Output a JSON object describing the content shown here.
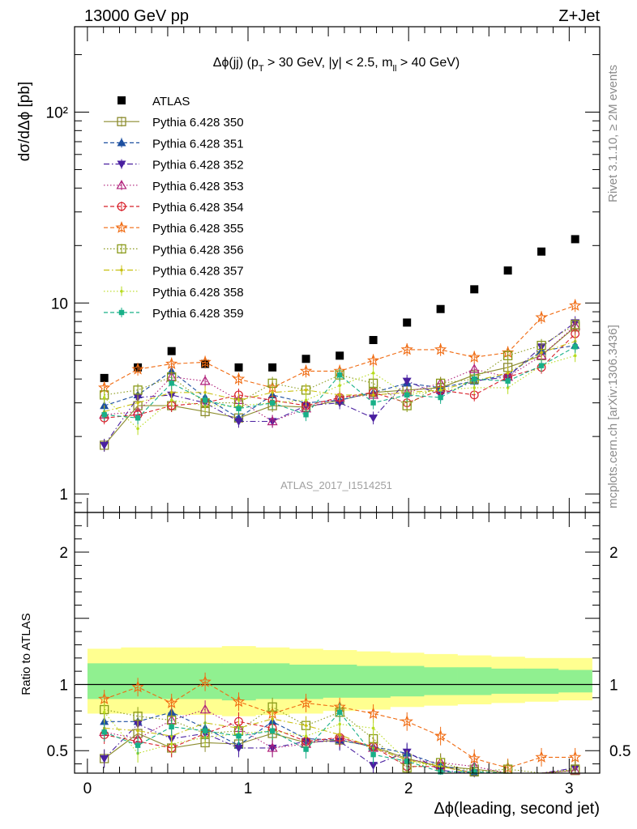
{
  "header": {
    "left": "13000 GeV pp",
    "right": "Z+Jet"
  },
  "plot_title": "Δϕ(jj) (p_T > 30 GeV, |y| < 2.5, m_ll > 40 GeV)",
  "side_right_top": "Rivet 3.1.10, ≥ 2M events",
  "side_right_bottom": "mcplots.cern.ch [arXiv:1306.3436]",
  "watermark": "ATLAS_2017_I1514251",
  "chart_data": [
    {
      "type": "scatter",
      "panel": "main",
      "title": "Δϕ(jj) (p_T > 30 GeV, |y| < 2.5, m_ll > 40 GeV)",
      "ylabel": "dσ/dΔϕ [pb]",
      "xlabel": "",
      "yscale": "log",
      "ylim": [
        0.8,
        280
      ],
      "xlim": [
        -0.08,
        3.19
      ],
      "y_ticks": [
        {
          "value": 1,
          "label": "1"
        },
        {
          "value": 10,
          "label": "10"
        },
        {
          "value": 100,
          "label": "10²"
        }
      ],
      "legend_placement": "top-left",
      "x": [
        0.105,
        0.314,
        0.524,
        0.733,
        0.942,
        1.152,
        1.361,
        1.571,
        1.78,
        1.99,
        2.199,
        2.409,
        2.618,
        2.827,
        3.037
      ],
      "series": [
        {
          "name": "ATLAS",
          "marker": "filled-square",
          "color": "#000000",
          "line": "none",
          "values": [
            4.05,
            4.6,
            5.6,
            4.8,
            4.6,
            4.6,
            5.1,
            5.3,
            6.4,
            7.9,
            9.3,
            11.8,
            14.8,
            18.6,
            21.6
          ]
        },
        {
          "name": "Pythia 6.428 350",
          "marker": "open-square",
          "color": "#8c8c2e",
          "line": "solid",
          "values": [
            1.8,
            2.9,
            2.9,
            2.7,
            2.5,
            2.9,
            2.85,
            3.1,
            3.4,
            3.5,
            3.6,
            4.2,
            4.6,
            5.3,
            7.5
          ]
        },
        {
          "name": "Pythia 6.428 351",
          "marker": "filled-triangle-up",
          "color": "#1c4fa0",
          "line": "dashed",
          "values": [
            2.9,
            3.3,
            4.4,
            3.2,
            2.5,
            3.3,
            3.0,
            3.1,
            3.4,
            3.8,
            3.6,
            3.9,
            4.2,
            5.6,
            6.0
          ]
        },
        {
          "name": "Pythia 6.428 352",
          "marker": "filled-triangle-down",
          "color": "#4a20a0",
          "line": "dashdot",
          "values": [
            1.8,
            3.2,
            3.3,
            3.0,
            2.4,
            2.4,
            2.9,
            3.0,
            2.5,
            3.9,
            3.3,
            3.9,
            4.1,
            5.9,
            7.9
          ]
        },
        {
          "name": "Pythia 6.428 353",
          "marker": "open-triangle-up",
          "color": "#b0207a",
          "line": "dotted",
          "values": [
            2.6,
            2.7,
            4.1,
            3.9,
            3.1,
            2.4,
            2.8,
            3.2,
            3.3,
            3.4,
            3.8,
            4.5,
            4.1,
            5.3,
            7.6
          ]
        },
        {
          "name": "Pythia 6.428 354",
          "marker": "open-circle",
          "color": "#d8202a",
          "line": "dashed",
          "values": [
            2.5,
            2.6,
            2.9,
            3.0,
            3.3,
            3.1,
            2.9,
            3.2,
            3.4,
            3.0,
            3.5,
            3.3,
            4.1,
            4.6,
            6.9
          ]
        },
        {
          "name": "Pythia 6.428 355",
          "marker": "open-star",
          "color": "#f06a10",
          "line": "dashed",
          "values": [
            3.6,
            4.5,
            4.8,
            4.9,
            4.0,
            3.6,
            4.4,
            4.4,
            5.0,
            5.7,
            5.7,
            5.2,
            5.5,
            8.4,
            9.7
          ]
        },
        {
          "name": "Pythia 6.428 356",
          "marker": "open-square",
          "color": "#8a9a1a",
          "line": "dotted",
          "values": [
            3.3,
            3.5,
            4.1,
            3.0,
            3.0,
            3.8,
            3.5,
            4.2,
            3.8,
            2.9,
            3.8,
            4.0,
            5.3,
            6.0,
            7.7
          ]
        },
        {
          "name": "Pythia 6.428 357",
          "marker": "small-dot",
          "color": "#c8c010",
          "line": "dashdot",
          "values": [
            2.7,
            3.0,
            3.4,
            3.4,
            3.1,
            3.4,
            3.5,
            3.3,
            3.3,
            3.4,
            3.5,
            3.9,
            4.3,
            5.5,
            6.3
          ]
        },
        {
          "name": "Pythia 6.428 358",
          "marker": "small-dot",
          "color": "#b8dc20",
          "line": "dotted",
          "values": [
            3.2,
            2.2,
            3.1,
            2.9,
            2.9,
            3.0,
            3.1,
            3.7,
            4.3,
            3.3,
            3.5,
            3.6,
            3.6,
            4.7,
            5.3
          ]
        },
        {
          "name": "Pythia 6.428 359",
          "marker": "filled-square-small",
          "color": "#18b088",
          "line": "dashed",
          "values": [
            2.6,
            2.5,
            3.8,
            3.1,
            2.8,
            3.0,
            2.6,
            4.2,
            3.0,
            3.3,
            3.2,
            4.0,
            3.9,
            4.7,
            5.9
          ]
        }
      ]
    },
    {
      "type": "scatter",
      "panel": "ratio",
      "ylabel": "Ratio to ATLAS",
      "xlabel": "Δϕ(leading, second jet)",
      "ylim": [
        0.33,
        2.3
      ],
      "xlim": [
        -0.08,
        3.19
      ],
      "y_ticks": [
        {
          "value": 0.5,
          "label": "0.5"
        },
        {
          "value": 1,
          "label": "1"
        },
        {
          "value": 2,
          "label": "2"
        }
      ],
      "x_ticks": [
        {
          "value": 0,
          "label": "0"
        },
        {
          "value": 1,
          "label": "1"
        },
        {
          "value": 2,
          "label": "2"
        },
        {
          "value": 3,
          "label": "3"
        }
      ],
      "reference_line": 1,
      "bands": [
        {
          "color": "#ffff90",
          "lower": [
            0.78,
            0.78,
            0.77,
            0.77,
            0.76,
            0.77,
            0.78,
            0.8,
            0.81,
            0.83,
            0.84,
            0.85,
            0.86,
            0.87,
            0.88
          ],
          "upper": [
            1.27,
            1.28,
            1.28,
            1.28,
            1.29,
            1.28,
            1.27,
            1.26,
            1.25,
            1.24,
            1.23,
            1.22,
            1.21,
            1.2,
            1.2
          ]
        },
        {
          "color": "#90f090",
          "lower": [
            0.89,
            0.89,
            0.89,
            0.89,
            0.88,
            0.89,
            0.89,
            0.9,
            0.9,
            0.91,
            0.92,
            0.92,
            0.93,
            0.93,
            0.94
          ],
          "upper": [
            1.16,
            1.16,
            1.16,
            1.16,
            1.16,
            1.16,
            1.15,
            1.15,
            1.14,
            1.14,
            1.13,
            1.13,
            1.12,
            1.12,
            1.11
          ]
        }
      ],
      "x": [
        0.105,
        0.314,
        0.524,
        0.733,
        0.942,
        1.152,
        1.361,
        1.571,
        1.78,
        1.99,
        2.199,
        2.409,
        2.618,
        2.827,
        3.037
      ],
      "series": [
        {
          "ref": "Pythia 6.428 350",
          "values": [
            0.44,
            0.63,
            0.52,
            0.56,
            0.55,
            0.63,
            0.56,
            0.58,
            0.53,
            0.44,
            0.38,
            0.36,
            0.31,
            0.28,
            0.35
          ]
        },
        {
          "ref": "Pythia 6.428 351",
          "values": [
            0.72,
            0.72,
            0.79,
            0.67,
            0.54,
            0.72,
            0.59,
            0.58,
            0.53,
            0.48,
            0.39,
            0.33,
            0.28,
            0.3,
            0.28
          ]
        },
        {
          "ref": "Pythia 6.428 352",
          "values": [
            0.44,
            0.7,
            0.59,
            0.63,
            0.52,
            0.52,
            0.57,
            0.57,
            0.39,
            0.49,
            0.35,
            0.33,
            0.28,
            0.32,
            0.37
          ]
        },
        {
          "ref": "Pythia 6.428 353",
          "values": [
            0.64,
            0.59,
            0.73,
            0.81,
            0.67,
            0.52,
            0.55,
            0.6,
            0.52,
            0.43,
            0.41,
            0.38,
            0.28,
            0.28,
            0.35
          ]
        },
        {
          "ref": "Pythia 6.428 354",
          "values": [
            0.62,
            0.57,
            0.52,
            0.63,
            0.72,
            0.67,
            0.57,
            0.6,
            0.53,
            0.38,
            0.38,
            0.28,
            0.28,
            0.25,
            0.32
          ]
        },
        {
          "ref": "Pythia 6.428 355",
          "values": [
            0.89,
            0.98,
            0.86,
            1.02,
            0.87,
            0.78,
            0.86,
            0.83,
            0.78,
            0.72,
            0.61,
            0.44,
            0.37,
            0.45,
            0.45
          ]
        },
        {
          "ref": "Pythia 6.428 356",
          "values": [
            0.81,
            0.76,
            0.73,
            0.63,
            0.65,
            0.83,
            0.69,
            0.79,
            0.59,
            0.37,
            0.41,
            0.34,
            0.36,
            0.32,
            0.36
          ]
        },
        {
          "ref": "Pythia 6.428 357",
          "values": [
            0.67,
            0.65,
            0.61,
            0.71,
            0.67,
            0.74,
            0.69,
            0.62,
            0.52,
            0.43,
            0.38,
            0.33,
            0.29,
            0.3,
            0.29
          ]
        },
        {
          "ref": "Pythia 6.428 358",
          "values": [
            0.79,
            0.48,
            0.55,
            0.6,
            0.63,
            0.65,
            0.61,
            0.7,
            0.67,
            0.42,
            0.38,
            0.31,
            0.24,
            0.25,
            0.25
          ]
        },
        {
          "ref": "Pythia 6.428 359",
          "values": [
            0.64,
            0.54,
            0.68,
            0.65,
            0.61,
            0.65,
            0.51,
            0.79,
            0.47,
            0.42,
            0.34,
            0.34,
            0.26,
            0.25,
            0.27
          ]
        }
      ]
    }
  ]
}
